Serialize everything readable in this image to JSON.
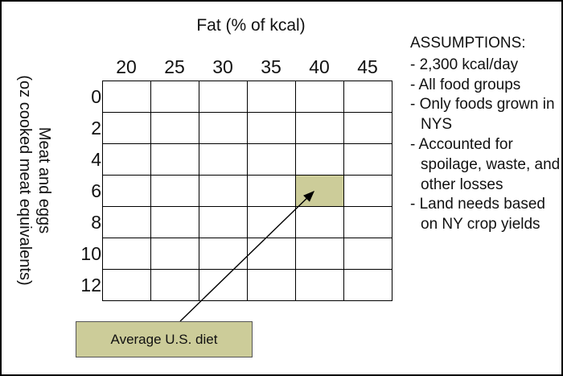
{
  "x_axis_title": "Fat (% of kcal)",
  "y_axis_title_line1": "Meat and eggs",
  "y_axis_title_line2": "(oz cooked meat equivalents)",
  "fat_columns": [
    "20",
    "25",
    "30",
    "35",
    "40",
    "45"
  ],
  "meat_rows": [
    "0",
    "2",
    "4",
    "6",
    "8",
    "10",
    "12"
  ],
  "highlighted_cell": {
    "fat": "40",
    "meat": "6"
  },
  "highlight_color": "#cccc99",
  "assumptions": {
    "heading": "ASSUMPTIONS:",
    "items": [
      "- 2,300 kcal/day",
      "- All food groups",
      "- Only foods grown in NYS",
      "- Accounted for spoilage, waste, and other losses",
      "- Land needs based on NY crop yields"
    ]
  },
  "callout": {
    "label": "Average U.S. diet"
  }
}
